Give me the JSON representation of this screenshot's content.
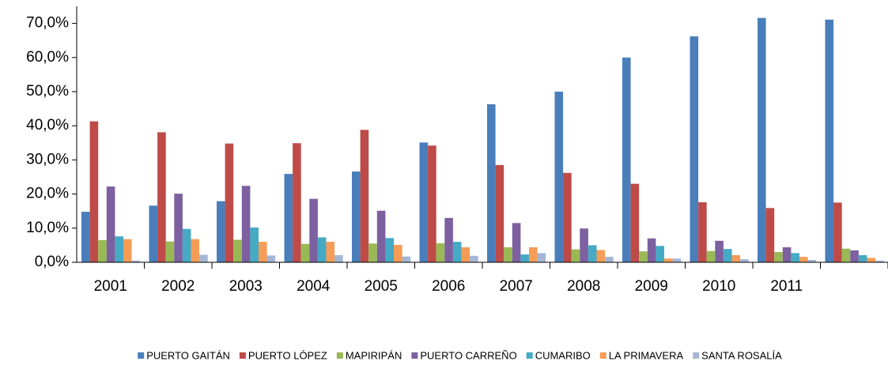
{
  "chart_data": {
    "type": "bar",
    "categories": [
      "2001",
      "2002",
      "2003",
      "2004",
      "2005",
      "2006",
      "2007",
      "2008",
      "2009",
      "2010",
      "2011",
      null
    ],
    "series": [
      {
        "name": "PUERTO GAITÁN",
        "color": "#4a7ebb",
        "values": [
          14.8,
          16.6,
          17.9,
          25.9,
          26.6,
          35.1,
          46.3,
          50.0,
          60.0,
          66.2,
          71.6,
          71.1
        ]
      },
      {
        "name": "PUERTO LÓPEZ",
        "color": "#be4b48",
        "values": [
          41.3,
          38.1,
          34.8,
          34.9,
          38.8,
          34.2,
          28.5,
          26.2,
          23.0,
          17.6,
          15.9,
          17.5
        ]
      },
      {
        "name": "MAPIRIPÁN",
        "color": "#98b954",
        "values": [
          6.5,
          6.1,
          6.6,
          5.4,
          5.5,
          5.6,
          4.4,
          3.8,
          3.2,
          3.3,
          3.0,
          4.0
        ]
      },
      {
        "name": "PUERTO CARREÑO",
        "color": "#7d60a0",
        "values": [
          22.2,
          20.1,
          22.4,
          18.6,
          15.1,
          13.0,
          11.5,
          9.9,
          7.0,
          6.3,
          4.4,
          3.5
        ]
      },
      {
        "name": "CUMARIBO",
        "color": "#46aac5",
        "values": [
          7.6,
          9.8,
          10.2,
          7.3,
          7.1,
          6.0,
          2.3,
          5.0,
          4.8,
          3.9,
          2.7,
          2.1
        ]
      },
      {
        "name": "LA PRIMAVERA",
        "color": "#f59d56",
        "values": [
          6.8,
          6.8,
          6.0,
          6.0,
          5.1,
          4.4,
          4.4,
          3.6,
          1.1,
          2.1,
          1.6,
          1.3
        ]
      },
      {
        "name": "SANTA ROSALÍA",
        "color": "#a5b6d6",
        "values": [
          0.5,
          2.2,
          2.0,
          2.1,
          1.7,
          1.9,
          2.7,
          1.6,
          1.1,
          0.9,
          0.7,
          0.5
        ]
      }
    ],
    "ylim": [
      0,
      75
    ],
    "yticks": [
      {
        "value": 0,
        "label": "0,0%"
      },
      {
        "value": 10,
        "label": "10,0%"
      },
      {
        "value": 20,
        "label": "20,0%"
      },
      {
        "value": 30,
        "label": "30,0%"
      },
      {
        "value": 40,
        "label": "40,0%"
      },
      {
        "value": 50,
        "label": "50,0%"
      },
      {
        "value": 60,
        "label": "60,0%"
      },
      {
        "value": 70,
        "label": "70,0%"
      }
    ],
    "legend": "bottom"
  }
}
